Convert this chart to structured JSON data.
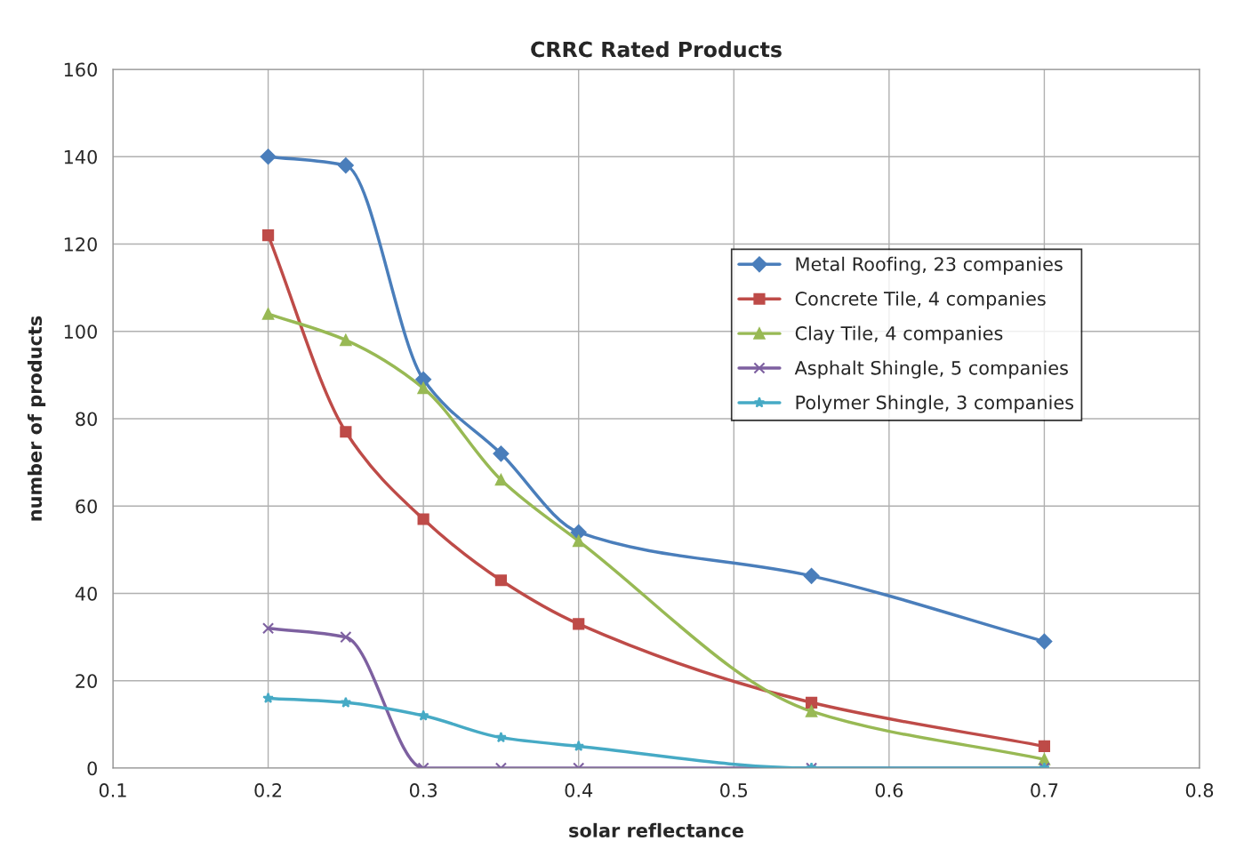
{
  "chart_data": {
    "type": "line",
    "title": "CRRC Rated Products",
    "xlabel": "solar reflectance",
    "ylabel": "number of products",
    "x": [
      0.2,
      0.25,
      0.3,
      0.35,
      0.4,
      0.55,
      0.7
    ],
    "series": [
      {
        "name": "Metal Roofing, 23 companies",
        "color": "#4a7ebb",
        "marker": "diamond",
        "values": [
          140,
          138,
          89,
          72,
          54,
          44,
          29
        ]
      },
      {
        "name": "Concrete Tile, 4 companies",
        "color": "#be4b48",
        "marker": "square",
        "values": [
          122,
          77,
          57,
          43,
          33,
          15,
          5
        ]
      },
      {
        "name": "Clay Tile, 4 companies",
        "color": "#98b954",
        "marker": "triangle",
        "values": [
          104,
          98,
          87,
          66,
          52,
          13,
          2
        ]
      },
      {
        "name": "Asphalt Shingle, 5 companies",
        "color": "#7d60a0",
        "marker": "cross",
        "values": [
          32,
          30,
          0,
          0,
          0,
          0,
          0
        ]
      },
      {
        "name": "Polymer Shingle, 3 companies",
        "color": "#46aac5",
        "marker": "star",
        "values": [
          16,
          15,
          12,
          7,
          5,
          0,
          0
        ]
      }
    ],
    "xlim": [
      0.1,
      0.8
    ],
    "xticks": [
      0.1,
      0.2,
      0.3,
      0.4,
      0.5,
      0.6,
      0.7,
      0.8
    ],
    "ylim": [
      0,
      160
    ],
    "yticks": [
      0,
      20,
      40,
      60,
      80,
      100,
      120,
      140,
      160
    ],
    "grid": true,
    "legend": "right",
    "line_style": "solid"
  }
}
